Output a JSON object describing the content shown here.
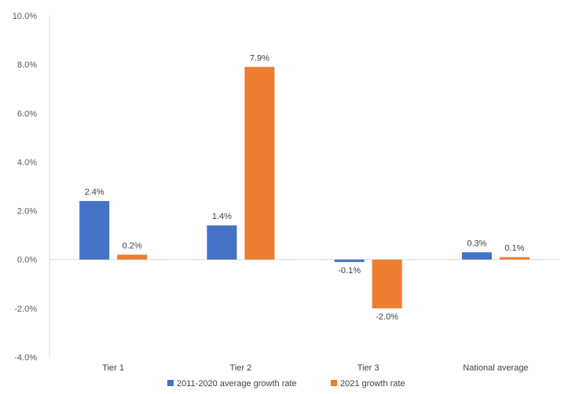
{
  "chart_data": {
    "type": "bar",
    "categories": [
      "Tier 1",
      "Tier 2",
      "Tier 3",
      "National average"
    ],
    "series": [
      {
        "name": "2011-2020 average growth rate",
        "values": [
          2.4,
          1.4,
          -0.1,
          0.3
        ],
        "labels": [
          "2.4%",
          "1.4%",
          "-0.1%",
          "0.3%"
        ],
        "color": "#4472C4"
      },
      {
        "name": "2021 growth rate",
        "values": [
          0.2,
          7.9,
          -2.0,
          0.1
        ],
        "labels": [
          "0.2%",
          "7.9%",
          "-2.0%",
          "0.1%"
        ],
        "color": "#ED7D31"
      }
    ],
    "ylim": [
      -4.0,
      10.0
    ],
    "yticks": [
      -4.0,
      -2.0,
      0.0,
      2.0,
      4.0,
      6.0,
      8.0,
      10.0
    ],
    "ytick_labels": [
      "-4.0%",
      "-2.0%",
      "0.0%",
      "2.0%",
      "4.0%",
      "6.0%",
      "8.0%",
      "10.0%"
    ],
    "title": "",
    "xlabel": "",
    "ylabel": "",
    "grid": false,
    "legend": "bottom"
  }
}
